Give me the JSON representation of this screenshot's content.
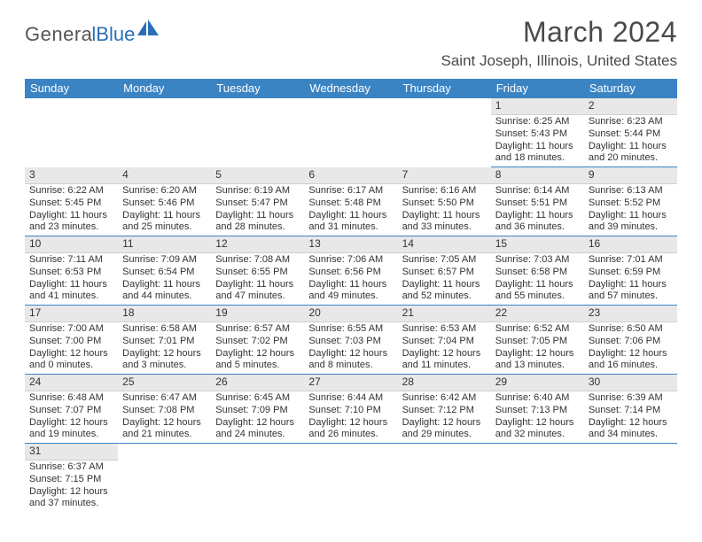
{
  "logo": {
    "main": "Genera",
    "sub": "lBlue"
  },
  "title": "March 2024",
  "location": "Saint Joseph, Illinois, United States",
  "colors": {
    "header_bg": "#3b84c4",
    "header_text": "#ffffff",
    "daynum_bg": "#e8e8e8",
    "border": "#3b84c4",
    "text": "#333333",
    "logo_gray": "#555555",
    "logo_blue": "#2a6fb5"
  },
  "weekdays": [
    "Sunday",
    "Monday",
    "Tuesday",
    "Wednesday",
    "Thursday",
    "Friday",
    "Saturday"
  ],
  "weeks": [
    [
      {
        "n": "",
        "empty": true
      },
      {
        "n": "",
        "empty": true
      },
      {
        "n": "",
        "empty": true
      },
      {
        "n": "",
        "empty": true
      },
      {
        "n": "",
        "empty": true
      },
      {
        "n": "1",
        "sunrise": "Sunrise: 6:25 AM",
        "sunset": "Sunset: 5:43 PM",
        "day1": "Daylight: 11 hours",
        "day2": "and 18 minutes."
      },
      {
        "n": "2",
        "sunrise": "Sunrise: 6:23 AM",
        "sunset": "Sunset: 5:44 PM",
        "day1": "Daylight: 11 hours",
        "day2": "and 20 minutes."
      }
    ],
    [
      {
        "n": "3",
        "sunrise": "Sunrise: 6:22 AM",
        "sunset": "Sunset: 5:45 PM",
        "day1": "Daylight: 11 hours",
        "day2": "and 23 minutes."
      },
      {
        "n": "4",
        "sunrise": "Sunrise: 6:20 AM",
        "sunset": "Sunset: 5:46 PM",
        "day1": "Daylight: 11 hours",
        "day2": "and 25 minutes."
      },
      {
        "n": "5",
        "sunrise": "Sunrise: 6:19 AM",
        "sunset": "Sunset: 5:47 PM",
        "day1": "Daylight: 11 hours",
        "day2": "and 28 minutes."
      },
      {
        "n": "6",
        "sunrise": "Sunrise: 6:17 AM",
        "sunset": "Sunset: 5:48 PM",
        "day1": "Daylight: 11 hours",
        "day2": "and 31 minutes."
      },
      {
        "n": "7",
        "sunrise": "Sunrise: 6:16 AM",
        "sunset": "Sunset: 5:50 PM",
        "day1": "Daylight: 11 hours",
        "day2": "and 33 minutes."
      },
      {
        "n": "8",
        "sunrise": "Sunrise: 6:14 AM",
        "sunset": "Sunset: 5:51 PM",
        "day1": "Daylight: 11 hours",
        "day2": "and 36 minutes."
      },
      {
        "n": "9",
        "sunrise": "Sunrise: 6:13 AM",
        "sunset": "Sunset: 5:52 PM",
        "day1": "Daylight: 11 hours",
        "day2": "and 39 minutes."
      }
    ],
    [
      {
        "n": "10",
        "sunrise": "Sunrise: 7:11 AM",
        "sunset": "Sunset: 6:53 PM",
        "day1": "Daylight: 11 hours",
        "day2": "and 41 minutes."
      },
      {
        "n": "11",
        "sunrise": "Sunrise: 7:09 AM",
        "sunset": "Sunset: 6:54 PM",
        "day1": "Daylight: 11 hours",
        "day2": "and 44 minutes."
      },
      {
        "n": "12",
        "sunrise": "Sunrise: 7:08 AM",
        "sunset": "Sunset: 6:55 PM",
        "day1": "Daylight: 11 hours",
        "day2": "and 47 minutes."
      },
      {
        "n": "13",
        "sunrise": "Sunrise: 7:06 AM",
        "sunset": "Sunset: 6:56 PM",
        "day1": "Daylight: 11 hours",
        "day2": "and 49 minutes."
      },
      {
        "n": "14",
        "sunrise": "Sunrise: 7:05 AM",
        "sunset": "Sunset: 6:57 PM",
        "day1": "Daylight: 11 hours",
        "day2": "and 52 minutes."
      },
      {
        "n": "15",
        "sunrise": "Sunrise: 7:03 AM",
        "sunset": "Sunset: 6:58 PM",
        "day1": "Daylight: 11 hours",
        "day2": "and 55 minutes."
      },
      {
        "n": "16",
        "sunrise": "Sunrise: 7:01 AM",
        "sunset": "Sunset: 6:59 PM",
        "day1": "Daylight: 11 hours",
        "day2": "and 57 minutes."
      }
    ],
    [
      {
        "n": "17",
        "sunrise": "Sunrise: 7:00 AM",
        "sunset": "Sunset: 7:00 PM",
        "day1": "Daylight: 12 hours",
        "day2": "and 0 minutes."
      },
      {
        "n": "18",
        "sunrise": "Sunrise: 6:58 AM",
        "sunset": "Sunset: 7:01 PM",
        "day1": "Daylight: 12 hours",
        "day2": "and 3 minutes."
      },
      {
        "n": "19",
        "sunrise": "Sunrise: 6:57 AM",
        "sunset": "Sunset: 7:02 PM",
        "day1": "Daylight: 12 hours",
        "day2": "and 5 minutes."
      },
      {
        "n": "20",
        "sunrise": "Sunrise: 6:55 AM",
        "sunset": "Sunset: 7:03 PM",
        "day1": "Daylight: 12 hours",
        "day2": "and 8 minutes."
      },
      {
        "n": "21",
        "sunrise": "Sunrise: 6:53 AM",
        "sunset": "Sunset: 7:04 PM",
        "day1": "Daylight: 12 hours",
        "day2": "and 11 minutes."
      },
      {
        "n": "22",
        "sunrise": "Sunrise: 6:52 AM",
        "sunset": "Sunset: 7:05 PM",
        "day1": "Daylight: 12 hours",
        "day2": "and 13 minutes."
      },
      {
        "n": "23",
        "sunrise": "Sunrise: 6:50 AM",
        "sunset": "Sunset: 7:06 PM",
        "day1": "Daylight: 12 hours",
        "day2": "and 16 minutes."
      }
    ],
    [
      {
        "n": "24",
        "sunrise": "Sunrise: 6:48 AM",
        "sunset": "Sunset: 7:07 PM",
        "day1": "Daylight: 12 hours",
        "day2": "and 19 minutes."
      },
      {
        "n": "25",
        "sunrise": "Sunrise: 6:47 AM",
        "sunset": "Sunset: 7:08 PM",
        "day1": "Daylight: 12 hours",
        "day2": "and 21 minutes."
      },
      {
        "n": "26",
        "sunrise": "Sunrise: 6:45 AM",
        "sunset": "Sunset: 7:09 PM",
        "day1": "Daylight: 12 hours",
        "day2": "and 24 minutes."
      },
      {
        "n": "27",
        "sunrise": "Sunrise: 6:44 AM",
        "sunset": "Sunset: 7:10 PM",
        "day1": "Daylight: 12 hours",
        "day2": "and 26 minutes."
      },
      {
        "n": "28",
        "sunrise": "Sunrise: 6:42 AM",
        "sunset": "Sunset: 7:12 PM",
        "day1": "Daylight: 12 hours",
        "day2": "and 29 minutes."
      },
      {
        "n": "29",
        "sunrise": "Sunrise: 6:40 AM",
        "sunset": "Sunset: 7:13 PM",
        "day1": "Daylight: 12 hours",
        "day2": "and 32 minutes."
      },
      {
        "n": "30",
        "sunrise": "Sunrise: 6:39 AM",
        "sunset": "Sunset: 7:14 PM",
        "day1": "Daylight: 12 hours",
        "day2": "and 34 minutes."
      }
    ],
    [
      {
        "n": "31",
        "sunrise": "Sunrise: 6:37 AM",
        "sunset": "Sunset: 7:15 PM",
        "day1": "Daylight: 12 hours",
        "day2": "and 37 minutes.",
        "noborder": true
      },
      {
        "n": "",
        "empty": true
      },
      {
        "n": "",
        "empty": true
      },
      {
        "n": "",
        "empty": true
      },
      {
        "n": "",
        "empty": true
      },
      {
        "n": "",
        "empty": true
      },
      {
        "n": "",
        "empty": true
      }
    ]
  ]
}
